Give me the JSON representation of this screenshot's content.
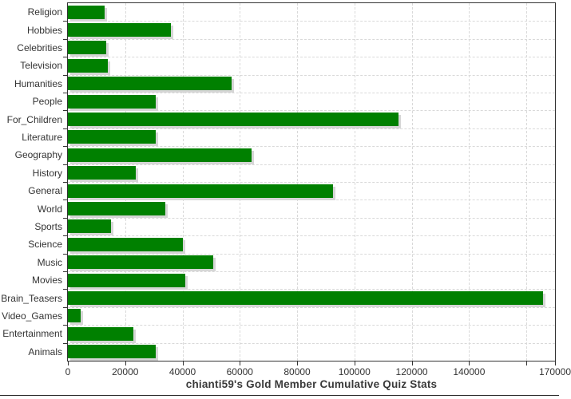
{
  "chart_data": {
    "type": "bar",
    "orientation": "horizontal",
    "title": "chianti59's Gold Member Cumulative Quiz Stats",
    "categories": [
      "Religion",
      "Hobbies",
      "Celebrities",
      "Television",
      "Humanities",
      "People",
      "For_Children",
      "Literature",
      "Geography",
      "History",
      "General",
      "World",
      "Sports",
      "Science",
      "Music",
      "Movies",
      "Brain_Teasers",
      "Video_Games",
      "Entertainment",
      "Animals"
    ],
    "values": [
      12800,
      36000,
      13400,
      14000,
      57100,
      30700,
      115300,
      30700,
      64200,
      23800,
      92400,
      34100,
      15000,
      40100,
      50600,
      41000,
      165800,
      4500,
      22900,
      30700
    ],
    "xlabel": "",
    "ylabel": "",
    "xlim": [
      0,
      170000
    ],
    "x_ticks": [
      {
        "value": 0,
        "label": "0"
      },
      {
        "value": 20000,
        "label": "20000"
      },
      {
        "value": 40000,
        "label": "40000"
      },
      {
        "value": 60000,
        "label": "60000"
      },
      {
        "value": 80000,
        "label": "80000"
      },
      {
        "value": 100000,
        "label": "100000"
      },
      {
        "value": 120000,
        "label": "120000"
      },
      {
        "value": 140000,
        "label": "140000"
      },
      {
        "value": 160000,
        "label": ""
      },
      {
        "value": 170000,
        "label": "170000"
      }
    ],
    "grid": "dashed",
    "legend": "none",
    "bar_color": "#008000",
    "shadow_color": "#d6d6d6",
    "grid_color": "#d9d9d9",
    "border_color": "#333333",
    "text_color": "#333333",
    "background": "#ffffff"
  }
}
